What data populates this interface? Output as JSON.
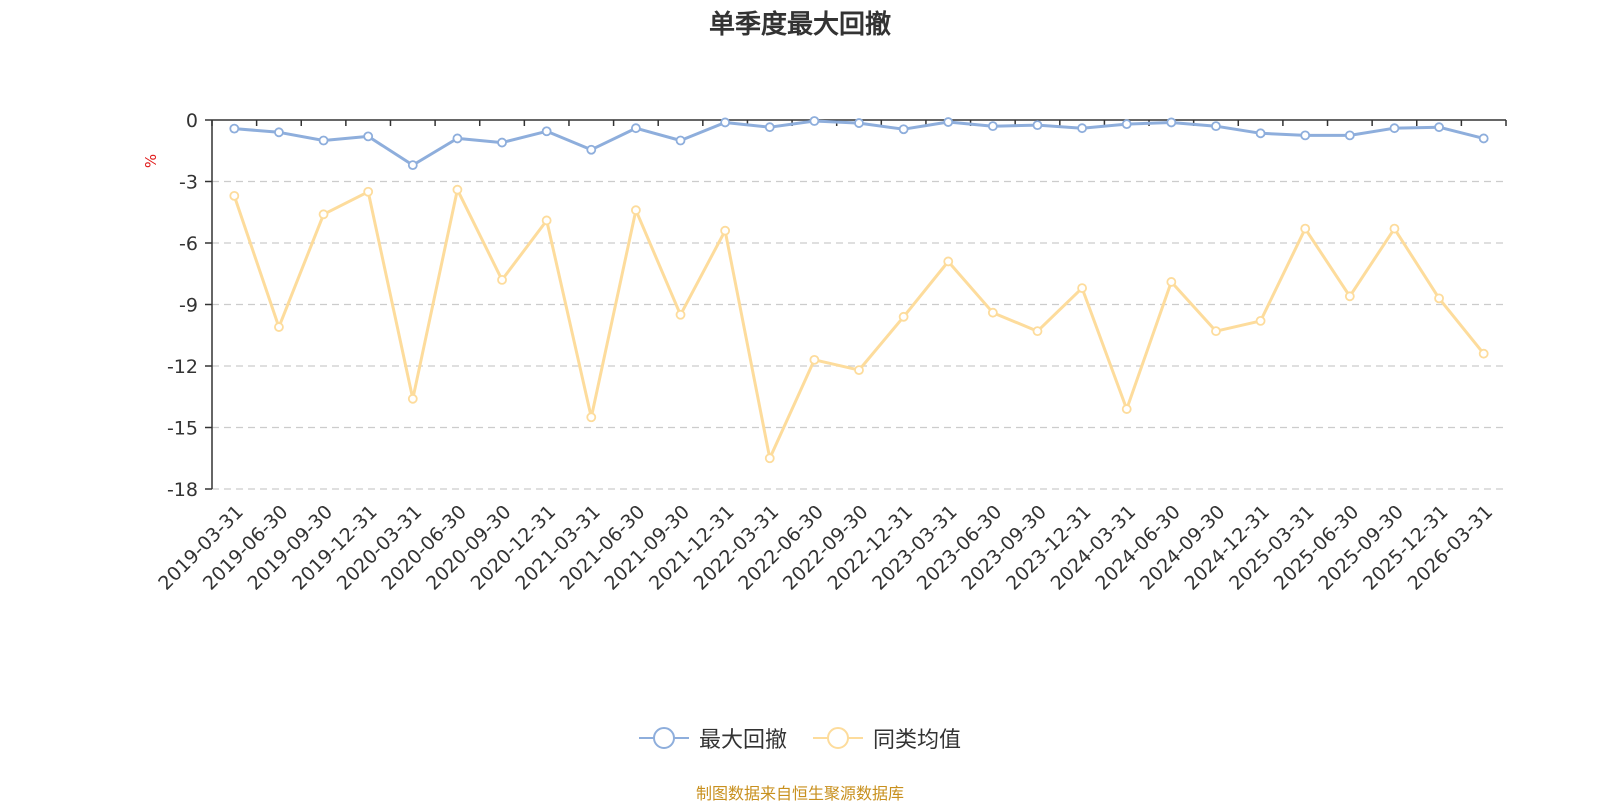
{
  "title": "单季度最大回撤",
  "source_text": "制图数据来自恒生聚源数据库",
  "colors": {
    "series_1": "#8eaedc",
    "series_2": "#fddc9c",
    "ylabel": "#e01a1a",
    "source": "#c8901e",
    "axis": "#333333",
    "grid": "#cccccc"
  },
  "chart_data": {
    "type": "line",
    "title": "单季度最大回撤",
    "ylabel": "%",
    "ylim": [
      -18,
      0
    ],
    "yticks": [
      0,
      -3,
      -6,
      -9,
      -12,
      -15,
      -18
    ],
    "grid": true,
    "legend_position": "bottom-center",
    "categories": [
      "2019-03-31",
      "2019-06-30",
      "2019-09-30",
      "2019-12-31",
      "2020-03-31",
      "2020-06-30",
      "2020-09-30",
      "2020-12-31",
      "2021-03-31",
      "2021-06-30",
      "2021-09-30",
      "2021-12-31",
      "2022-03-31",
      "2022-06-30",
      "2022-09-30",
      "2022-12-31",
      "2023-03-31",
      "2023-06-30",
      "2023-09-30",
      "2023-12-31",
      "2024-03-31",
      "2024-06-30",
      "2024-09-30",
      "2024-12-31",
      "2025-03-31",
      "2025-06-30",
      "2025-09-30",
      "2025-12-31",
      "2026-03-31"
    ],
    "series": [
      {
        "name": "最大回撤",
        "values": [
          -0.42,
          -0.6,
          -1.0,
          -0.8,
          -2.2,
          -0.9,
          -1.1,
          -0.55,
          -1.45,
          -0.4,
          -1.0,
          -0.12,
          -0.35,
          -0.05,
          -0.15,
          -0.45,
          -0.1,
          -0.3,
          -0.25,
          -0.4,
          -0.2,
          -0.12,
          -0.3,
          -0.65,
          -0.75,
          -0.75,
          -0.4,
          -0.35,
          -0.9
        ]
      },
      {
        "name": "同类均值",
        "values": [
          -3.7,
          -10.1,
          -4.6,
          -3.5,
          -13.6,
          -3.4,
          -7.8,
          -4.9,
          -14.5,
          -4.4,
          -9.5,
          -5.4,
          -16.5,
          -11.7,
          -12.2,
          -9.6,
          -6.9,
          -9.4,
          -10.3,
          -8.2,
          -14.1,
          -7.9,
          -10.3,
          -9.8,
          -5.3,
          -8.6,
          -5.3,
          -8.7,
          -11.4
        ]
      }
    ]
  }
}
